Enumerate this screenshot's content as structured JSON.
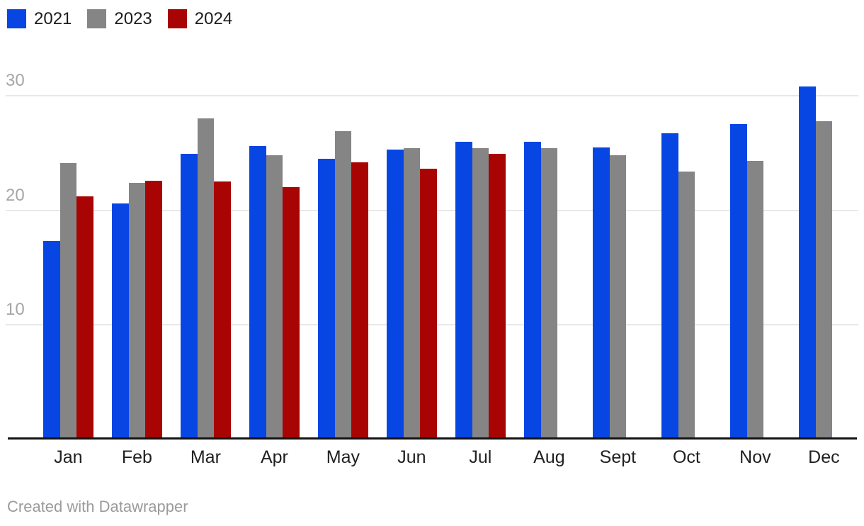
{
  "chart_data": {
    "type": "bar",
    "title": "",
    "xlabel": "",
    "ylabel": "",
    "categories": [
      "Jan",
      "Feb",
      "Mar",
      "Apr",
      "May",
      "Jun",
      "Jul",
      "Aug",
      "Sept",
      "Oct",
      "Nov",
      "Dec"
    ],
    "series": [
      {
        "name": "2021",
        "color": "#0846e4",
        "values": [
          17.3,
          20.6,
          24.9,
          25.6,
          24.5,
          25.3,
          26.0,
          26.0,
          25.5,
          26.7,
          27.5,
          30.8
        ]
      },
      {
        "name": "2023",
        "color": "#858585",
        "values": [
          24.1,
          22.4,
          28.0,
          24.8,
          26.9,
          25.4,
          25.4,
          25.4,
          24.8,
          23.4,
          24.3,
          27.8
        ]
      },
      {
        "name": "2024",
        "color": "#a80404",
        "values": [
          21.2,
          22.6,
          22.5,
          22.0,
          24.2,
          23.6,
          24.9,
          null,
          null,
          null,
          null,
          null
        ]
      }
    ],
    "yticks": [
      10,
      20,
      30
    ],
    "ylim": [
      0,
      32
    ],
    "grid": true,
    "legend_position": "top-left",
    "bar_grouping": "grouped"
  },
  "colors": {
    "background": "#ffffff",
    "axis_line": "#141414",
    "gridline": "#e8e8e8",
    "ytick_label": "#a6a6a6",
    "month_label": "#212121",
    "footer_text": "#9b9b9b"
  },
  "footer": {
    "credit": "Created with Datawrapper"
  }
}
